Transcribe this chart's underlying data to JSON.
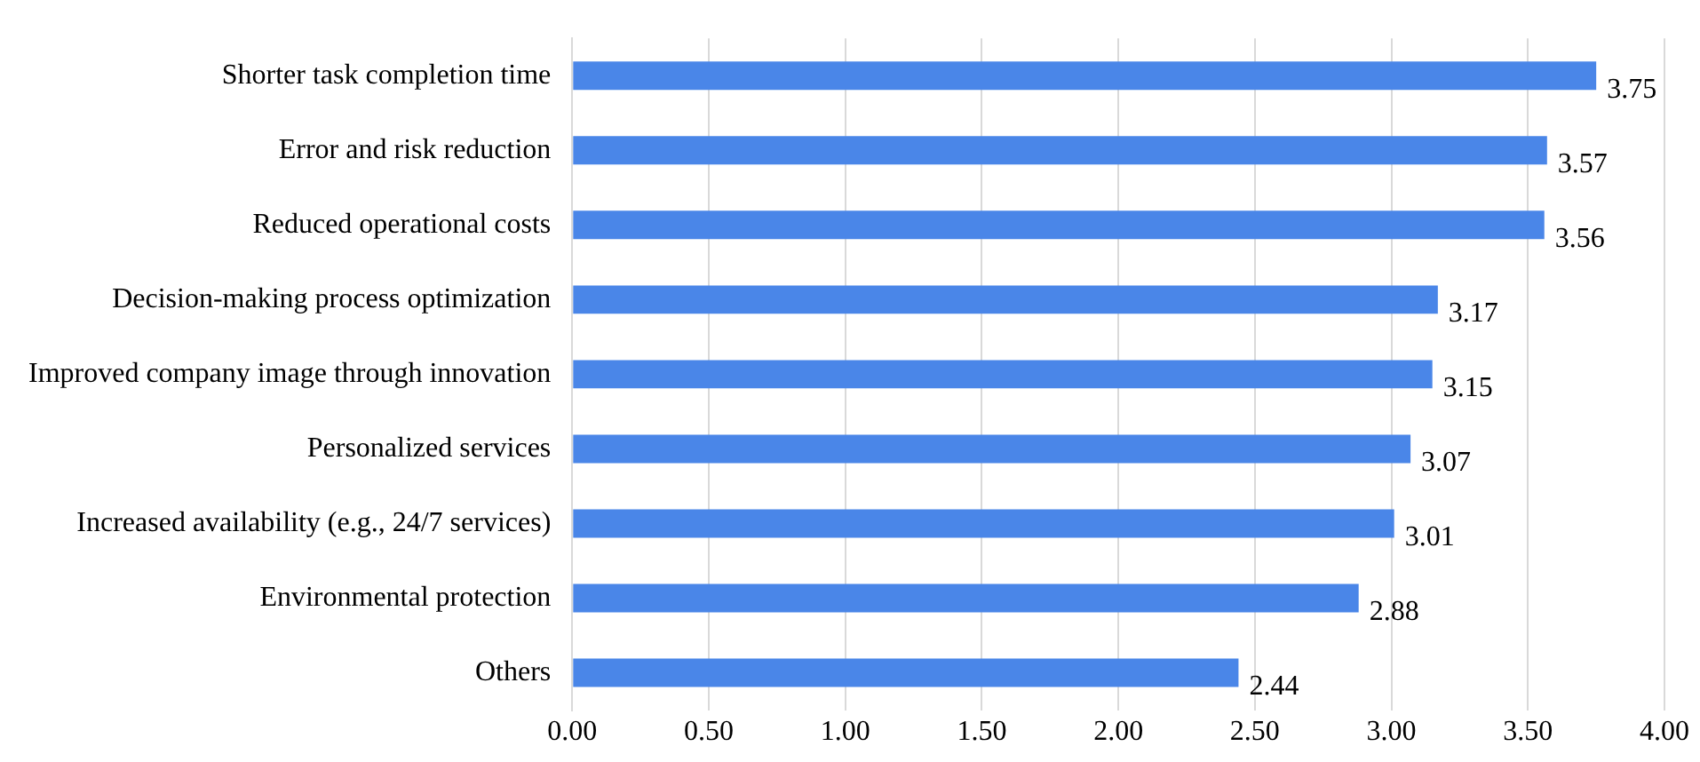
{
  "chart_data": {
    "type": "bar",
    "orientation": "horizontal",
    "categories": [
      "Shorter task completion time",
      "Error and risk reduction",
      "Reduced operational costs",
      "Decision-making process optimization",
      "Improved company image through innovation",
      "Personalized services",
      "Increased availability (e.g., 24/7 services)",
      "Environmental protection",
      "Others"
    ],
    "values": [
      3.75,
      3.57,
      3.56,
      3.17,
      3.15,
      3.07,
      3.01,
      2.88,
      2.44
    ],
    "color": "#4a86e8",
    "xlim": [
      0,
      4
    ],
    "xticks": [
      {
        "value": 0,
        "label": "0.00"
      },
      {
        "value": 0.5,
        "label": "0.50"
      },
      {
        "value": 1,
        "label": "1.00"
      },
      {
        "value": 1.5,
        "label": "1.50"
      },
      {
        "value": 2,
        "label": "2.00"
      },
      {
        "value": 2.5,
        "label": "2.50"
      },
      {
        "value": 3,
        "label": "3.00"
      },
      {
        "value": 3.5,
        "label": "3.50"
      },
      {
        "value": 4,
        "label": "4.00"
      }
    ],
    "grid": "x",
    "data_labels": true,
    "legend": false
  }
}
